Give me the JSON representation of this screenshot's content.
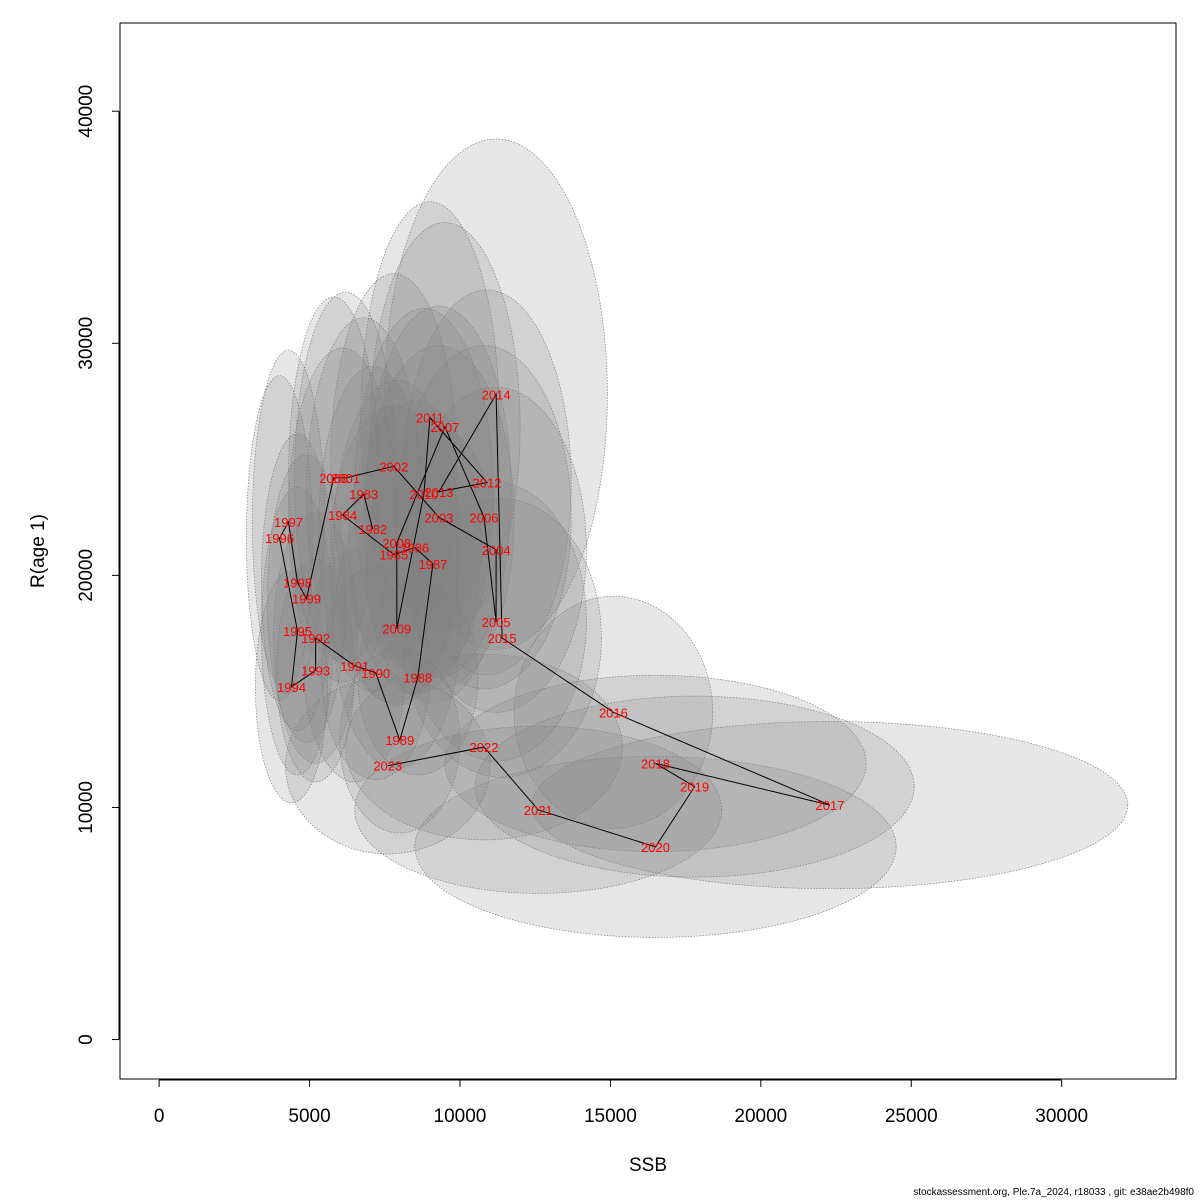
{
  "chart_data": {
    "type": "scatter",
    "title": "",
    "xlabel": "SSB",
    "ylabel": "R(age 1)",
    "xlim": [
      -1300,
      33800
    ],
    "ylim": [
      -1700,
      43800
    ],
    "xticks": [
      0,
      5000,
      10000,
      15000,
      20000,
      25000,
      30000
    ],
    "yticks": [
      0,
      10000,
      20000,
      30000,
      40000
    ],
    "grid": false,
    "legend": "none",
    "colors": {
      "ellipse_fill": "#808080",
      "ellipse_stroke": "#7f7f7f",
      "label": "#ff0000",
      "line": "#000000"
    },
    "points": [
      {
        "year": "1982",
        "x": 7100,
        "y": 22000,
        "rx": 1800,
        "ry": 7000
      },
      {
        "year": "1983",
        "x": 6800,
        "y": 23500,
        "rx": 1900,
        "ry": 7600
      },
      {
        "year": "1984",
        "x": 6100,
        "y": 22600,
        "rx": 1800,
        "ry": 7200
      },
      {
        "year": "1985",
        "x": 7800,
        "y": 20900,
        "rx": 2100,
        "ry": 6400
      },
      {
        "year": "1986",
        "x": 8500,
        "y": 21200,
        "rx": 2200,
        "ry": 6300
      },
      {
        "year": "1987",
        "x": 9100,
        "y": 20500,
        "rx": 2200,
        "ry": 6000
      },
      {
        "year": "1988",
        "x": 8600,
        "y": 15600,
        "rx": 2000,
        "ry": 4200
      },
      {
        "year": "1989",
        "x": 8000,
        "y": 12900,
        "rx": 2000,
        "ry": 4000
      },
      {
        "year": "1990",
        "x": 7200,
        "y": 15800,
        "rx": 1800,
        "ry": 4600
      },
      {
        "year": "1991",
        "x": 6500,
        "y": 16100,
        "rx": 1700,
        "ry": 5000
      },
      {
        "year": "1992",
        "x": 5200,
        "y": 17300,
        "rx": 1400,
        "ry": 5400
      },
      {
        "year": "1993",
        "x": 5200,
        "y": 15900,
        "rx": 1300,
        "ry": 4800
      },
      {
        "year": "1994",
        "x": 4400,
        "y": 15200,
        "rx": 1200,
        "ry": 5000
      },
      {
        "year": "1995",
        "x": 4600,
        "y": 17600,
        "rx": 1200,
        "ry": 6200
      },
      {
        "year": "1996",
        "x": 4000,
        "y": 21600,
        "rx": 1100,
        "ry": 7000
      },
      {
        "year": "1997",
        "x": 4300,
        "y": 22300,
        "rx": 1200,
        "ry": 7400
      },
      {
        "year": "1998",
        "x": 4600,
        "y": 19700,
        "rx": 1200,
        "ry": 6400
      },
      {
        "year": "1999",
        "x": 4900,
        "y": 19000,
        "rx": 1300,
        "ry": 6200
      },
      {
        "year": "2000",
        "x": 5800,
        "y": 24200,
        "rx": 1500,
        "ry": 7800
      },
      {
        "year": "2001",
        "x": 6200,
        "y": 24200,
        "rx": 1700,
        "ry": 8000
      },
      {
        "year": "2002",
        "x": 7800,
        "y": 24700,
        "rx": 2100,
        "ry": 8300
      },
      {
        "year": "2003",
        "x": 9300,
        "y": 22500,
        "rx": 2500,
        "ry": 7400
      },
      {
        "year": "2004",
        "x": 11200,
        "y": 21100,
        "rx": 3000,
        "ry": 7000
      },
      {
        "year": "2005",
        "x": 11200,
        "y": 18000,
        "rx": 3000,
        "ry": 6000
      },
      {
        "year": "2006",
        "x": 10800,
        "y": 22500,
        "rx": 2900,
        "ry": 7400
      },
      {
        "year": "2007",
        "x": 9500,
        "y": 26400,
        "rx": 2500,
        "ry": 8800
      },
      {
        "year": "2008",
        "x": 7900,
        "y": 21400,
        "rx": 2100,
        "ry": 7000
      },
      {
        "year": "2009",
        "x": 7900,
        "y": 17700,
        "rx": 2100,
        "ry": 6000
      },
      {
        "year": "2010",
        "x": 8800,
        "y": 23500,
        "rx": 2300,
        "ry": 8000
      },
      {
        "year": "2011",
        "x": 9000,
        "y": 26800,
        "rx": 2300,
        "ry": 9300
      },
      {
        "year": "2012",
        "x": 10900,
        "y": 24000,
        "rx": 2800,
        "ry": 8300
      },
      {
        "year": "2013",
        "x": 9300,
        "y": 23600,
        "rx": 2400,
        "ry": 8000
      },
      {
        "year": "2014",
        "x": 11200,
        "y": 27800,
        "rx": 3700,
        "ry": 11000
      },
      {
        "year": "2015",
        "x": 11400,
        "y": 17300,
        "rx": 3300,
        "ry": 6000
      },
      {
        "year": "2016",
        "x": 15100,
        "y": 14100,
        "rx": 3300,
        "ry": 5000
      },
      {
        "year": "2017",
        "x": 22300,
        "y": 10100,
        "rx": 9900,
        "ry": 3600
      },
      {
        "year": "2018",
        "x": 16500,
        "y": 11900,
        "rx": 7000,
        "ry": 3800
      },
      {
        "year": "2019",
        "x": 17800,
        "y": 10900,
        "rx": 7300,
        "ry": 3900
      },
      {
        "year": "2020",
        "x": 16500,
        "y": 8300,
        "rx": 8000,
        "ry": 3900
      },
      {
        "year": "2021",
        "x": 12600,
        "y": 9900,
        "rx": 6100,
        "ry": 3600
      },
      {
        "year": "2022",
        "x": 10800,
        "y": 12600,
        "rx": 4600,
        "ry": 4000
      },
      {
        "year": "2023",
        "x": 7600,
        "y": 11800,
        "rx": 3400,
        "ry": 3800
      }
    ]
  },
  "footer": "stockassessment.org, Ple.7a_2024, r18033 , git: e38ae2b498f0"
}
